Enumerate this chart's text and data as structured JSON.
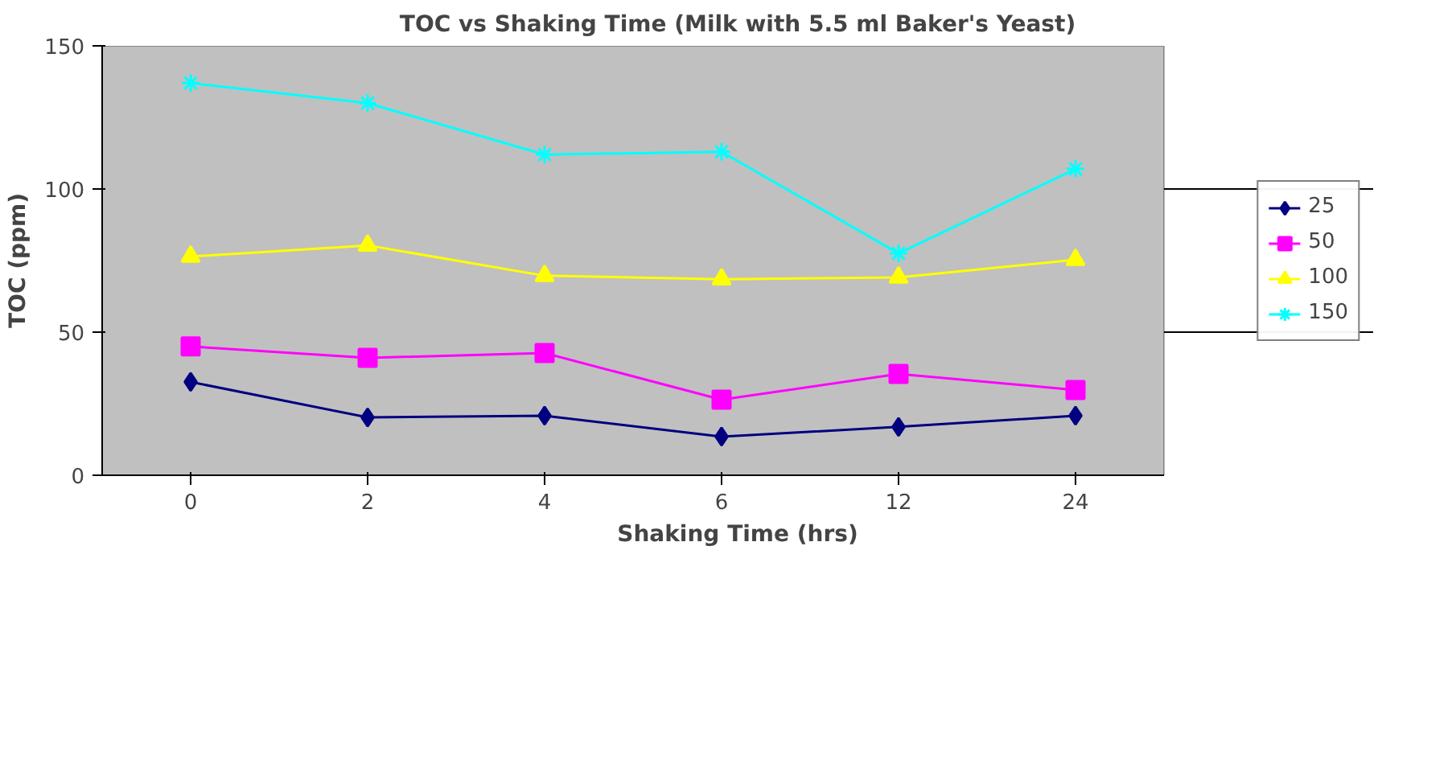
{
  "chart_data": {
    "type": "line",
    "title": "TOC vs Shaking Time (Milk with 5.5 ml Baker's Yeast)",
    "xlabel": "Shaking Time (hrs)",
    "ylabel": "TOC (ppm)",
    "categories": [
      "0",
      "2",
      "4",
      "6",
      "12",
      "24"
    ],
    "series": [
      {
        "name": "25",
        "color": "#000080",
        "marker": "diamond",
        "values": [
          32.6,
          20.2,
          20.8,
          13.5,
          16.9,
          20.8
        ]
      },
      {
        "name": "50",
        "color": "#ff00ff",
        "marker": "square",
        "values": [
          45,
          41,
          42.7,
          26.4,
          35.4,
          29.8
        ]
      },
      {
        "name": "100",
        "color": "#ffff00",
        "marker": "triangle",
        "values": [
          76.4,
          80.3,
          69.7,
          68.5,
          69.1,
          75.3
        ]
      },
      {
        "name": "150",
        "color": "#00ffff",
        "marker": "cross",
        "values": [
          137,
          130,
          112,
          113,
          77.5,
          107
        ]
      }
    ],
    "ylim": [
      0,
      150
    ],
    "yticks": [
      0,
      50,
      100,
      150
    ],
    "grid": "y",
    "legend": "right"
  }
}
